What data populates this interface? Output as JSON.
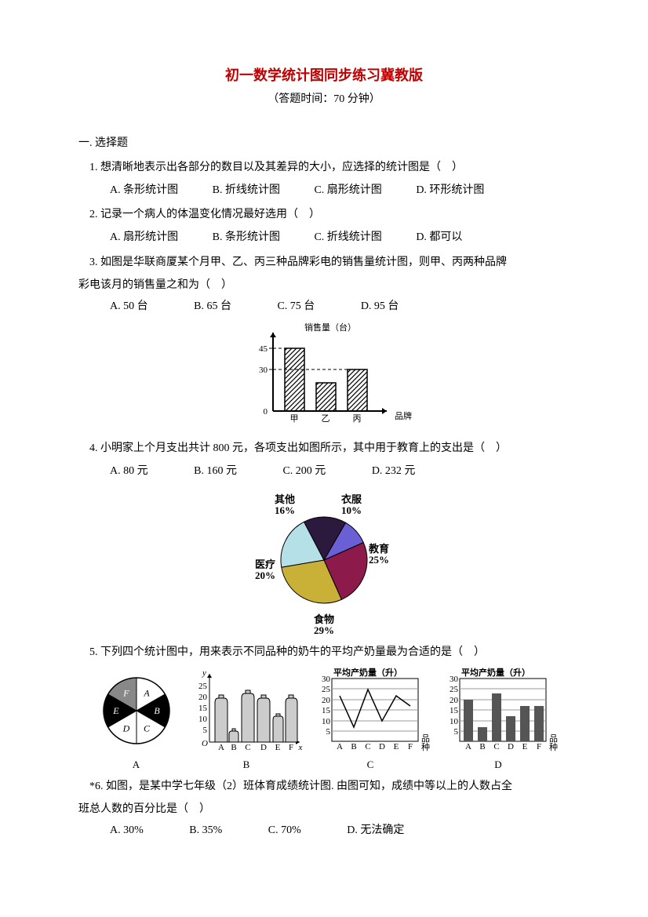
{
  "title": "初一数学统计图同步练习冀教版",
  "subtitle": "（答题时间：70 分钟）",
  "section1": "一. 选择题",
  "q1": {
    "text": "1. 想清晰地表示出各部分的数目以及其差异的大小，应选择的统计图是（　）",
    "A": "A. 条形统计图",
    "B": "B. 折线统计图",
    "C": "C. 扇形统计图",
    "D": "D. 环形统计图"
  },
  "q2": {
    "text": "2. 记录一个病人的体温变化情况最好选用（　）",
    "A": "A. 扇形统计图",
    "B": "B. 条形统计图",
    "C": "C. 折线统计图",
    "D": "D. 都可以"
  },
  "q3": {
    "text1": "3. 如图是华联商厦某个月甲、乙、丙三种品牌彩电的销售量统计图，则甲、丙两种品牌",
    "text2": "彩电该月的销售量之和为（　）",
    "A": "A. 50 台",
    "B": "B. 65 台",
    "C": "C. 75 台",
    "D": "D. 95 台",
    "chart": {
      "type": "bar",
      "ylabel": "销售量（台）",
      "xlabel": "品牌",
      "yTicks": [
        0,
        30,
        45
      ],
      "categories": [
        "甲",
        "乙",
        "丙"
      ],
      "values": [
        45,
        20,
        30
      ],
      "bar_color": "#ffffff",
      "hatch_color": "#000000",
      "axis_color": "#000000"
    }
  },
  "q4": {
    "text": "4. 小明家上个月支出共计 800 元，各项支出如图所示，其中用于教育上的支出是（　）",
    "A": "A. 80 元",
    "B": "B. 160 元",
    "C": "C. 200 元",
    "D": "D. 232 元",
    "chart": {
      "type": "pie",
      "slices": [
        {
          "label": "衣服",
          "pct": "10%",
          "value": 10,
          "color": "#6b5fd6"
        },
        {
          "label": "教育",
          "pct": "25%",
          "value": 25,
          "color": "#8c1a4a"
        },
        {
          "label": "食物",
          "pct": "29%",
          "value": 29,
          "color": "#c9b037"
        },
        {
          "label": "医疗",
          "pct": "20%",
          "value": 20,
          "color": "#b5e0e8"
        },
        {
          "label": "其他",
          "pct": "16%",
          "value": 16,
          "color": "#2b1a3d"
        }
      ],
      "stroke": "#000000"
    }
  },
  "q5": {
    "text": "5. 下列四个统计图中，用来表示不同品种的奶牛的平均产奶量最为合适的是（　）",
    "labelA": "A",
    "labelB": "B",
    "labelC": "C",
    "labelD": "D",
    "chartA": {
      "type": "pie",
      "sectors": [
        "A",
        "B",
        "C",
        "D",
        "E",
        "F"
      ],
      "colors": [
        "#ffffff",
        "#000000",
        "#ffffff",
        "#ffffff",
        "#000000",
        "#888888"
      ]
    },
    "chartB": {
      "type": "pictogram-bar",
      "ylabel": "y",
      "yTicks": [
        5,
        10,
        15,
        20,
        25
      ],
      "categories": [
        "A",
        "B",
        "C",
        "D",
        "E",
        "F"
      ],
      "values": [
        20,
        5,
        22,
        20,
        12,
        20
      ],
      "fill": "#cccccc",
      "stroke": "#000000"
    },
    "chartC": {
      "type": "line",
      "title": "平均产奶量（升）",
      "yTicks": [
        5,
        10,
        15,
        20,
        25,
        30
      ],
      "categories": [
        "A",
        "B",
        "C",
        "D",
        "E",
        "F"
      ],
      "values": [
        22,
        7,
        25,
        10,
        22,
        17
      ],
      "xlabel": "品种",
      "line_color": "#000000",
      "grid_color": "#999999"
    },
    "chartD": {
      "type": "bar",
      "title": "平均产奶量（升）",
      "yTicks": [
        5,
        10,
        15,
        20,
        25,
        30
      ],
      "categories": [
        "A",
        "B",
        "C",
        "D",
        "E",
        "F"
      ],
      "values": [
        20,
        7,
        23,
        12,
        17,
        17
      ],
      "xlabel": "品种",
      "bar_color": "#555555",
      "grid_color": "#999999"
    }
  },
  "q6": {
    "text1": "*6. 如图，是某中学七年级（2）班体育成绩统计图. 由图可知，成绩中等以上的人数占全",
    "text2": "班总人数的百分比是（　）",
    "A": "A. 30%",
    "B": "B. 35%",
    "C": "C. 70%",
    "D": "D. 无法确定"
  }
}
